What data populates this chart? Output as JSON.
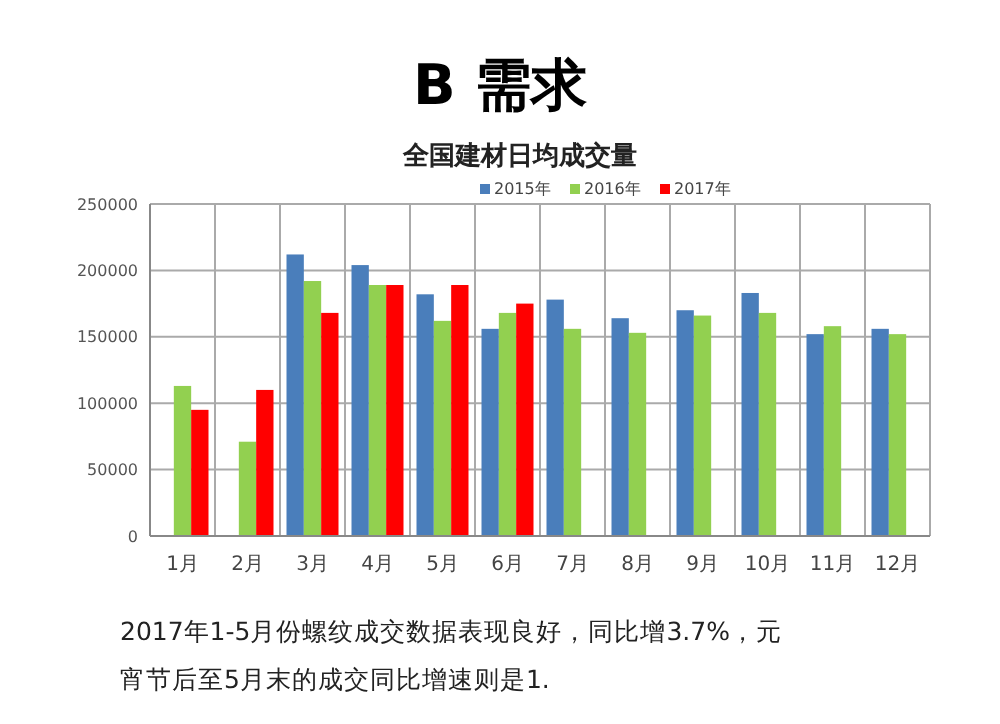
{
  "chart_data": {
    "type": "bar",
    "title": "B 需求",
    "subtitle": "全国建材日均成交量",
    "categories": [
      "1月",
      "2月",
      "3月",
      "4月",
      "5月",
      "6月",
      "7月",
      "8月",
      "9月",
      "10月",
      "11月",
      "12月"
    ],
    "series": [
      {
        "name": "2015年",
        "color": "#4a7ebb",
        "values": [
          null,
          null,
          212000,
          204000,
          182000,
          156000,
          178000,
          164000,
          170000,
          183000,
          152000,
          156000
        ]
      },
      {
        "name": "2016年",
        "color": "#92d050",
        "values": [
          113000,
          71000,
          192000,
          189000,
          162000,
          168000,
          156000,
          153000,
          166000,
          168000,
          158000,
          152000
        ]
      },
      {
        "name": "2017年",
        "color": "#ff0000",
        "values": [
          95000,
          110000,
          168000,
          189000,
          189000,
          175000,
          null,
          null,
          null,
          null,
          null,
          null
        ]
      }
    ],
    "ylim": [
      0,
      250000
    ],
    "yticks": [
      0,
      50000,
      100000,
      150000,
      200000,
      250000
    ],
    "grid": true,
    "legend": "top",
    "annotations": [
      "2017年1-5月份螺纹成交数据表现良好，同比增3.7%，元宵节后至5月末的成交同比增速则是1."
    ]
  }
}
